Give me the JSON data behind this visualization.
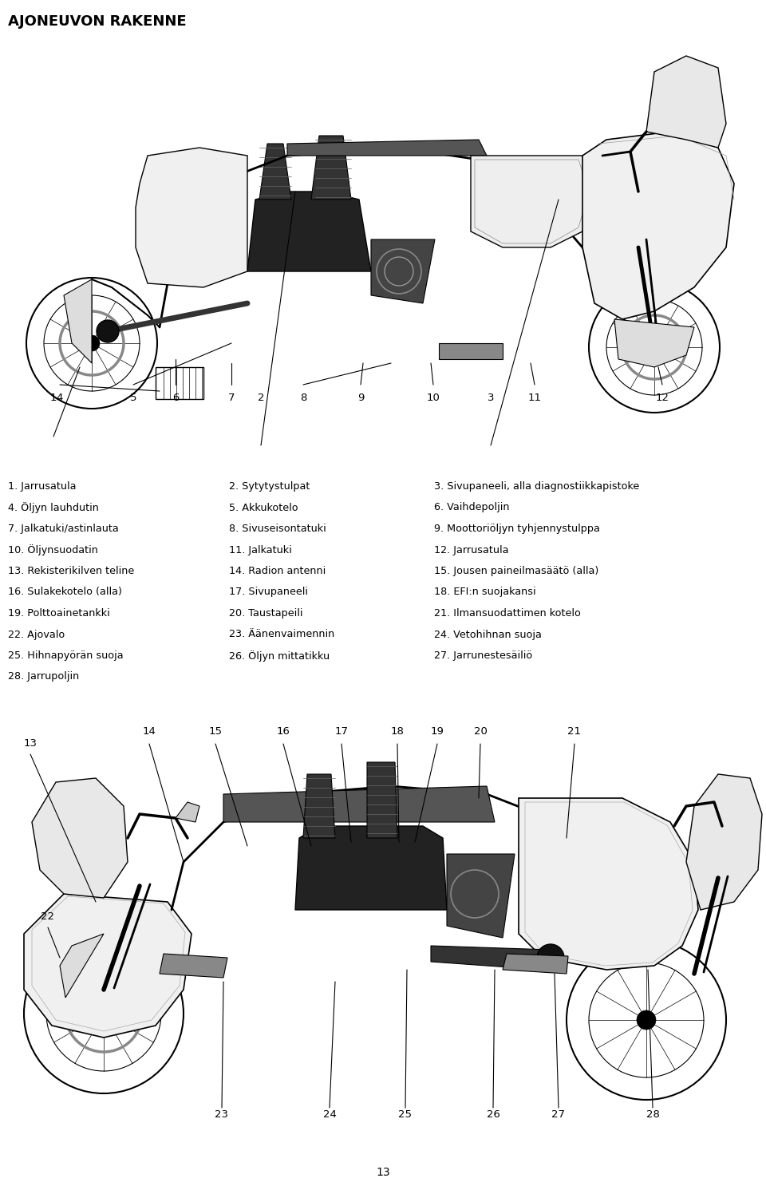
{
  "title": "AJONEUVON RAKENNE",
  "page_number": "13",
  "bg": "#ffffff",
  "fg": "#000000",
  "parts_col1": [
    "1. Jarrusatula",
    "4. Öljyn lauhdutin",
    "7. Jalkatuki/astinlauta",
    "10. Öljynsuodatin",
    "13. Rekisterikilven teline",
    "16. Sulakekotelo (alla)",
    "19. Polttoainetankki",
    "22. Ajovalo",
    "25. Hihnapyörän suoja",
    "28. Jarrupoljin"
  ],
  "parts_col2": [
    "2. Sytytystulpat",
    "5. Akkukotelo",
    "8. Sivuseisontatuki",
    "11. Jalkatuki",
    "14. Radion antenni",
    "17. Sivupaneeli",
    "20. Taustapeili",
    "23. Äänenvaimennin",
    "26. Öljyn mittatikku",
    ""
  ],
  "parts_col3": [
    "3. Sivupaneeli, alla diagnostiikkapistoke",
    "6. Vaihdepoljin",
    "9. Moottoriöljyn tyhjennystulppa",
    "12. Jarrusatula",
    "15. Jousen paineilmasäätö (alla)",
    "18. EFI:n suojakansi",
    "21. Ilmansuodattimen kotelo",
    "24. Vetohihnan suoja",
    "27. Jarrunestesäiliö",
    ""
  ]
}
